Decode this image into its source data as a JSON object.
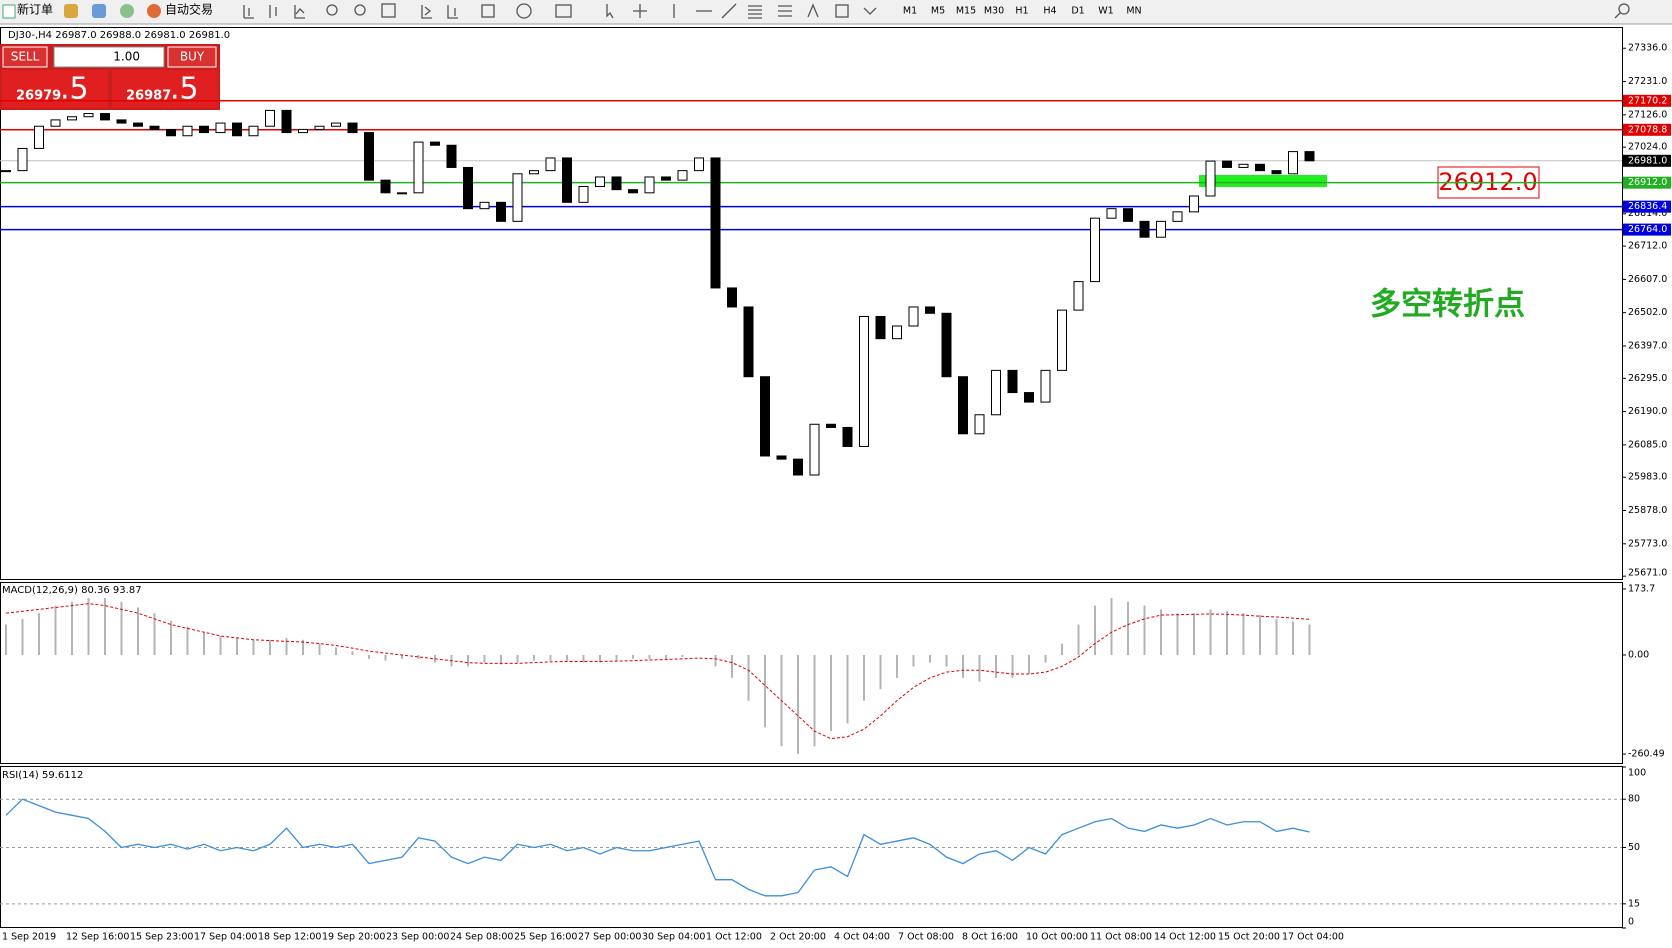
{
  "toolbar": {
    "new_order": "新订单",
    "auto_trading": "自动交易",
    "timeframes": [
      "M1",
      "M5",
      "M15",
      "M30",
      "H1",
      "H4",
      "D1",
      "W1",
      "MN"
    ]
  },
  "trade_panel": {
    "sell": "SELL",
    "buy": "BUY",
    "lot": "1.00",
    "bid_main": "26979",
    "bid_frac": ".5",
    "ask_main": "26987",
    "ask_frac": ".5"
  },
  "time_labels": [
    "1 Sep 2019",
    "12 Sep 16:00",
    "15 Sep 23:00",
    "17 Sep 04:00",
    "18 Sep 12:00",
    "19 Sep 20:00",
    "23 Sep 00:00",
    "24 Sep 08:00",
    "25 Sep 16:00",
    "27 Sep 00:00",
    "30 Sep 04:00",
    "1 Oct 12:00",
    "2 Oct 20:00",
    "4 Oct 04:00",
    "7 Oct 08:00",
    "8 Oct 16:00",
    "10 Oct 00:00",
    "11 Oct 08:00",
    "14 Oct 12:00",
    "15 Oct 20:00",
    "17 Oct 04:00"
  ],
  "chart_data": [
    {
      "type": "candlestick",
      "title": "DJ30-,H4  26987.0 26988.0 26981.0 26981.0",
      "ylim": [
        25662,
        27403
      ],
      "yticks": [
        {
          "value": 27336,
          "label": "27336.0"
        },
        {
          "value": 27231,
          "label": "27231.0"
        },
        {
          "value": 27126,
          "label": "27126.0"
        },
        {
          "value": 27024,
          "label": "27024.0"
        },
        {
          "value": 26814,
          "label": "26814.0"
        },
        {
          "value": 26712,
          "label": "26712.0"
        },
        {
          "value": 26607,
          "label": "26607.0"
        },
        {
          "value": 26502,
          "label": "26502.0"
        },
        {
          "value": 26397,
          "label": "26397.0"
        },
        {
          "value": 26295,
          "label": "26295.0"
        },
        {
          "value": 26190,
          "label": "26190.0"
        },
        {
          "value": 26085,
          "label": "26085.0"
        },
        {
          "value": 25983,
          "label": "25983.0"
        },
        {
          "value": 25878,
          "label": "25878.0"
        },
        {
          "value": 25773,
          "label": "25773.0"
        },
        {
          "value": 25671,
          "label": "25671.0"
        }
      ],
      "levels": [
        {
          "value": 27170.2,
          "label": "27170.2",
          "color": "#e00000"
        },
        {
          "value": 27078.8,
          "label": "27078.8",
          "color": "#e00000"
        },
        {
          "value": 26981.0,
          "label": "26981.0",
          "color": "#c0c0c0"
        },
        {
          "value": 26912.0,
          "label": "26912.0",
          "color": "#22b022"
        },
        {
          "value": 26836.4,
          "label": "26836.4",
          "color": "#0000e0"
        },
        {
          "value": 26764.0,
          "label": "26764.0",
          "color": "#0000e0"
        }
      ],
      "annotation": "26912.0",
      "note": "多空转折点",
      "closes": [
        26950,
        27020,
        27090,
        27110,
        27120,
        27130,
        27110,
        27100,
        27090,
        27080,
        27060,
        27090,
        27070,
        27100,
        27060,
        27090,
        27140,
        27070,
        27080,
        27090,
        27100,
        27070,
        26920,
        26880,
        26880,
        27040,
        27030,
        26960,
        26830,
        26850,
        26790,
        26940,
        26950,
        26990,
        26850,
        26900,
        26930,
        26890,
        26880,
        26930,
        26920,
        26950,
        26990,
        26580,
        26520,
        26300,
        26050,
        26040,
        25990,
        26150,
        26140,
        26080,
        26490,
        26420,
        26460,
        26520,
        26500,
        26300,
        26120,
        26180,
        26320,
        26250,
        26220,
        26320,
        26510,
        26600,
        26800,
        26830,
        26790,
        26740,
        26790,
        26820,
        26870,
        26980,
        26960,
        26970,
        26950,
        26940,
        27010,
        26981
      ]
    },
    {
      "type": "macd",
      "title": "MACD(12,26,9) 80.36 93.87",
      "ylim": [
        -284,
        192
      ],
      "yticks": [
        {
          "value": 173.7,
          "label": "173.7"
        },
        {
          "value": 0,
          "label": "0.00"
        },
        {
          "value": -260.49,
          "label": "-260.49"
        }
      ],
      "histogram": [
        80,
        95,
        110,
        130,
        140,
        150,
        150,
        140,
        125,
        110,
        90,
        75,
        60,
        50,
        45,
        40,
        40,
        45,
        40,
        30,
        20,
        10,
        -10,
        -15,
        -10,
        -10,
        -20,
        -30,
        -30,
        -20,
        -25,
        -20,
        -15,
        -15,
        -15,
        -20,
        -20,
        -15,
        -10,
        -10,
        -10,
        -5,
        0,
        -30,
        -60,
        -120,
        -190,
        -240,
        -260,
        -240,
        -200,
        -180,
        -120,
        -90,
        -60,
        -30,
        -20,
        -30,
        -60,
        -70,
        -60,
        -60,
        -50,
        -20,
        30,
        80,
        130,
        150,
        140,
        130,
        120,
        110,
        110,
        120,
        115,
        110,
        105,
        95,
        88,
        80.36
      ],
      "histogram_color": "#b4b4b4",
      "signal": [
        110,
        115,
        120,
        125,
        130,
        135,
        130,
        120,
        110,
        95,
        80,
        70,
        60,
        50,
        45,
        40,
        38,
        36,
        34,
        30,
        25,
        18,
        10,
        5,
        0,
        -5,
        -10,
        -15,
        -20,
        -22,
        -22,
        -22,
        -20,
        -18,
        -17,
        -17,
        -17,
        -16,
        -15,
        -13,
        -12,
        -10,
        -8,
        -10,
        -20,
        -40,
        -80,
        -120,
        -160,
        -200,
        -220,
        -215,
        -195,
        -160,
        -120,
        -85,
        -60,
        -45,
        -40,
        -40,
        -45,
        -50,
        -50,
        -45,
        -30,
        -5,
        30,
        60,
        80,
        95,
        105,
        106,
        107,
        108,
        107,
        105,
        102,
        100,
        97,
        93.87
      ],
      "signal_color": "#e00000"
    },
    {
      "type": "line",
      "title": "RSI(14) 59.6112",
      "ylim": [
        0,
        100
      ],
      "yticks": [
        100,
        80,
        50,
        15,
        0
      ],
      "color": "#3a8fdc",
      "values": [
        70,
        80,
        76,
        72,
        70,
        68,
        60,
        50,
        52,
        50,
        52,
        49,
        52,
        48,
        50,
        48,
        52,
        62,
        50,
        52,
        50,
        52,
        40,
        42,
        44,
        56,
        54,
        44,
        40,
        44,
        42,
        52,
        50,
        52,
        48,
        50,
        46,
        50,
        48,
        48,
        50,
        52,
        54,
        30,
        30,
        24,
        20,
        20,
        22,
        36,
        38,
        32,
        58,
        52,
        54,
        56,
        52,
        44,
        40,
        46,
        48,
        42,
        50,
        46,
        58,
        62,
        66,
        68,
        62,
        60,
        64,
        62,
        64,
        68,
        64,
        66,
        66,
        60,
        62,
        59.6112
      ]
    }
  ]
}
